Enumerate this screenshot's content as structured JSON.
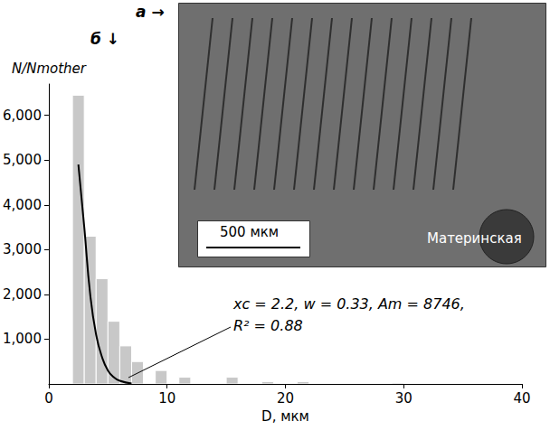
{
  "chart_data": {
    "type": "histogram",
    "xlabel": "D, мкм",
    "ylabel": "N/Nmother",
    "bins": [
      2,
      3,
      4,
      5,
      6,
      7,
      8,
      9,
      10,
      11,
      12,
      13,
      14,
      15,
      16,
      17,
      18,
      19,
      20,
      21,
      22,
      23,
      24,
      25,
      26,
      27,
      28,
      29,
      30,
      31
    ],
    "counts": [
      6450,
      3300,
      2350,
      1400,
      850,
      500,
      0,
      300,
      0,
      150,
      0,
      0,
      0,
      150,
      0,
      0,
      50,
      0,
      0,
      50,
      0,
      0,
      0,
      0,
      0,
      0,
      0,
      20,
      0
    ],
    "color": "#c8c8c8",
    "fit": {
      "type": "line",
      "color": "#000000",
      "x": [
        2.5,
        3,
        3.5,
        4,
        4.5,
        5,
        5.5,
        6,
        7
      ],
      "values": [
        4900,
        3500,
        2000,
        1100,
        600,
        300,
        150,
        70,
        10
      ]
    },
    "xlim": [
      0,
      40
    ],
    "xticks": [
      0,
      10,
      20,
      30,
      40
    ],
    "ylim": [
      0,
      6700
    ],
    "yticks": [
      1000,
      2000,
      3000,
      4000,
      5000,
      6000
    ],
    "grid": false,
    "annotations": {
      "fit": [
        "xc = 2.2, w = 0.33, Am = 8746,",
        "R² = 0.88"
      ],
      "inset_scale": "500 мкм",
      "inset_label": "Материнская",
      "label_a": "a →",
      "label_b": "б ↓"
    }
  }
}
